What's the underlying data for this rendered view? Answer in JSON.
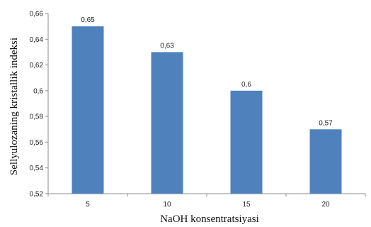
{
  "chart_data": {
    "type": "bar",
    "categories": [
      "5",
      "10",
      "15",
      "20"
    ],
    "values": [
      0.65,
      0.63,
      0.6,
      0.57
    ],
    "data_labels": [
      "0,65",
      "0,63",
      "0,6",
      "0,57"
    ],
    "title": "",
    "xlabel": "NaOH konsentratsiyasi",
    "ylabel": "Sellyulozaning kristallik indeksi",
    "ylim": [
      0.52,
      0.66
    ],
    "yticks": [
      0.52,
      0.54,
      0.56,
      0.58,
      0.6,
      0.62,
      0.64,
      0.66
    ],
    "ytick_labels": [
      "0,52",
      "0,54",
      "0,56",
      "0,58",
      "0,6",
      "0,62",
      "0,64",
      "0,66"
    ],
    "grid": false,
    "legend": "none",
    "bar_color": "#4f81bd"
  }
}
